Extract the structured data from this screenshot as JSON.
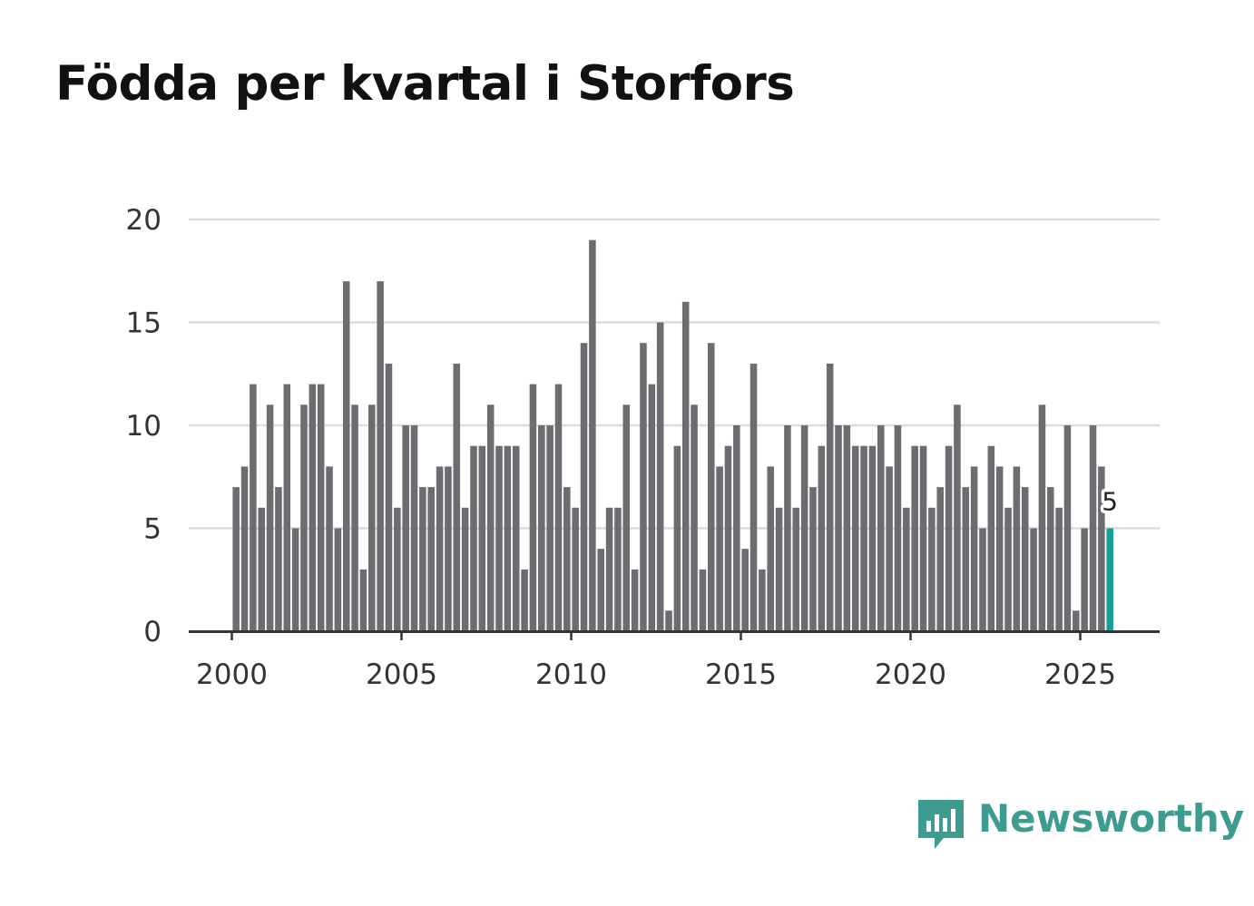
{
  "chart_data": {
    "type": "bar",
    "title": "Födda per kvartal i Storfors",
    "xlabel": "",
    "ylabel": "",
    "ylim": [
      0,
      20
    ],
    "yticks": [
      0,
      5,
      10,
      15,
      20
    ],
    "xticks": [
      2000,
      2005,
      2010,
      2015,
      2020,
      2025
    ],
    "start_year": 2000,
    "periods_per_year": 4,
    "grid": true,
    "bar_color": "#6d6d71",
    "highlight_color": "#1a9e96",
    "highlight_label": "5",
    "values": [
      7,
      8,
      12,
      6,
      11,
      7,
      12,
      5,
      11,
      12,
      12,
      8,
      5,
      17,
      11,
      3,
      11,
      17,
      13,
      6,
      10,
      10,
      7,
      7,
      8,
      8,
      13,
      6,
      9,
      9,
      11,
      9,
      9,
      9,
      3,
      12,
      10,
      10,
      12,
      7,
      6,
      14,
      19,
      4,
      6,
      6,
      11,
      3,
      14,
      12,
      15,
      1,
      9,
      16,
      11,
      3,
      14,
      8,
      9,
      10,
      4,
      13,
      3,
      8,
      6,
      10,
      6,
      10,
      7,
      9,
      13,
      10,
      10,
      9,
      9,
      9,
      10,
      8,
      10,
      6,
      9,
      9,
      6,
      7,
      9,
      11,
      7,
      8,
      5,
      9,
      8,
      6,
      8,
      7,
      5,
      11,
      7,
      6,
      10,
      1,
      5,
      10,
      8,
      5
    ]
  },
  "brand": {
    "name": "Newsworthy",
    "color": "#3d9b8f"
  }
}
